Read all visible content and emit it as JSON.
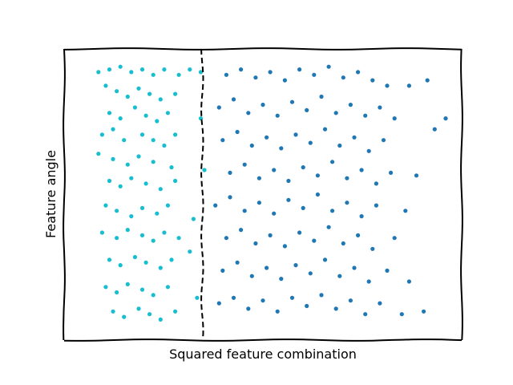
{
  "chart_data": {
    "type": "scatter",
    "xlabel": "Squared feature combination",
    "ylabel": "Feature angle",
    "xlim": [
      0,
      1
    ],
    "ylim": [
      0,
      1
    ],
    "x_ticks_visible": false,
    "y_ticks_visible": false,
    "grid": false,
    "legend": "none",
    "decision_boundary": {
      "style": "dashed",
      "color": "#000000",
      "x": 0.334
    },
    "series": [
      {
        "color": "#17becf",
        "points": [
          [
            0.05,
            0.95
          ],
          [
            0.08,
            0.96
          ],
          [
            0.11,
            0.97
          ],
          [
            0.14,
            0.95
          ],
          [
            0.17,
            0.96
          ],
          [
            0.2,
            0.94
          ],
          [
            0.23,
            0.96
          ],
          [
            0.27,
            0.94
          ],
          [
            0.3,
            0.96
          ],
          [
            0.33,
            0.95
          ],
          [
            0.07,
            0.9
          ],
          [
            0.1,
            0.88
          ],
          [
            0.13,
            0.86
          ],
          [
            0.16,
            0.89
          ],
          [
            0.19,
            0.87
          ],
          [
            0.22,
            0.85
          ],
          [
            0.26,
            0.87
          ],
          [
            0.08,
            0.8
          ],
          [
            0.11,
            0.78
          ],
          [
            0.15,
            0.82
          ],
          [
            0.18,
            0.79
          ],
          [
            0.21,
            0.77
          ],
          [
            0.24,
            0.8
          ],
          [
            0.06,
            0.72
          ],
          [
            0.09,
            0.74
          ],
          [
            0.12,
            0.7
          ],
          [
            0.17,
            0.72
          ],
          [
            0.2,
            0.7
          ],
          [
            0.23,
            0.68
          ],
          [
            0.26,
            0.72
          ],
          [
            0.05,
            0.65
          ],
          [
            0.09,
            0.63
          ],
          [
            0.13,
            0.61
          ],
          [
            0.16,
            0.64
          ],
          [
            0.2,
            0.62
          ],
          [
            0.25,
            0.6
          ],
          [
            0.08,
            0.55
          ],
          [
            0.11,
            0.53
          ],
          [
            0.14,
            0.56
          ],
          [
            0.18,
            0.54
          ],
          [
            0.22,
            0.52
          ],
          [
            0.26,
            0.55
          ],
          [
            0.07,
            0.46
          ],
          [
            0.1,
            0.44
          ],
          [
            0.14,
            0.42
          ],
          [
            0.17,
            0.45
          ],
          [
            0.21,
            0.43
          ],
          [
            0.24,
            0.46
          ],
          [
            0.06,
            0.36
          ],
          [
            0.1,
            0.34
          ],
          [
            0.13,
            0.37
          ],
          [
            0.17,
            0.35
          ],
          [
            0.2,
            0.33
          ],
          [
            0.23,
            0.36
          ],
          [
            0.27,
            0.34
          ],
          [
            0.08,
            0.26
          ],
          [
            0.11,
            0.24
          ],
          [
            0.15,
            0.27
          ],
          [
            0.18,
            0.25
          ],
          [
            0.22,
            0.23
          ],
          [
            0.25,
            0.26
          ],
          [
            0.07,
            0.16
          ],
          [
            0.1,
            0.14
          ],
          [
            0.13,
            0.17
          ],
          [
            0.17,
            0.15
          ],
          [
            0.2,
            0.13
          ],
          [
            0.24,
            0.16
          ],
          [
            0.09,
            0.07
          ],
          [
            0.12,
            0.05
          ],
          [
            0.16,
            0.08
          ],
          [
            0.19,
            0.06
          ],
          [
            0.22,
            0.04
          ],
          [
            0.26,
            0.07
          ],
          [
            0.31,
            0.41
          ],
          [
            0.33,
            0.78
          ],
          [
            0.34,
            0.59
          ],
          [
            0.3,
            0.29
          ],
          [
            0.32,
            0.12
          ]
        ]
      },
      {
        "color": "#1f77b4",
        "points": [
          [
            0.4,
            0.94
          ],
          [
            0.44,
            0.96
          ],
          [
            0.48,
            0.93
          ],
          [
            0.52,
            0.95
          ],
          [
            0.56,
            0.92
          ],
          [
            0.6,
            0.96
          ],
          [
            0.64,
            0.94
          ],
          [
            0.68,
            0.97
          ],
          [
            0.72,
            0.93
          ],
          [
            0.76,
            0.95
          ],
          [
            0.8,
            0.92
          ],
          [
            0.84,
            0.9
          ],
          [
            0.9,
            0.9
          ],
          [
            0.95,
            0.92
          ],
          [
            0.38,
            0.82
          ],
          [
            0.42,
            0.85
          ],
          [
            0.46,
            0.8
          ],
          [
            0.5,
            0.83
          ],
          [
            0.54,
            0.79
          ],
          [
            0.58,
            0.84
          ],
          [
            0.62,
            0.81
          ],
          [
            0.66,
            0.86
          ],
          [
            0.7,
            0.8
          ],
          [
            0.74,
            0.83
          ],
          [
            0.78,
            0.79
          ],
          [
            0.82,
            0.82
          ],
          [
            0.86,
            0.78
          ],
          [
            1.0,
            0.78
          ],
          [
            0.39,
            0.7
          ],
          [
            0.43,
            0.73
          ],
          [
            0.47,
            0.68
          ],
          [
            0.51,
            0.71
          ],
          [
            0.55,
            0.67
          ],
          [
            0.59,
            0.72
          ],
          [
            0.63,
            0.69
          ],
          [
            0.67,
            0.74
          ],
          [
            0.71,
            0.68
          ],
          [
            0.75,
            0.71
          ],
          [
            0.79,
            0.66
          ],
          [
            0.83,
            0.7
          ],
          [
            0.97,
            0.74
          ],
          [
            0.41,
            0.58
          ],
          [
            0.45,
            0.61
          ],
          [
            0.49,
            0.56
          ],
          [
            0.53,
            0.59
          ],
          [
            0.57,
            0.55
          ],
          [
            0.61,
            0.6
          ],
          [
            0.65,
            0.57
          ],
          [
            0.69,
            0.62
          ],
          [
            0.73,
            0.56
          ],
          [
            0.77,
            0.59
          ],
          [
            0.81,
            0.54
          ],
          [
            0.85,
            0.58
          ],
          [
            0.92,
            0.57
          ],
          [
            0.37,
            0.46
          ],
          [
            0.41,
            0.49
          ],
          [
            0.45,
            0.44
          ],
          [
            0.49,
            0.47
          ],
          [
            0.53,
            0.43
          ],
          [
            0.57,
            0.48
          ],
          [
            0.61,
            0.45
          ],
          [
            0.65,
            0.5
          ],
          [
            0.69,
            0.44
          ],
          [
            0.73,
            0.47
          ],
          [
            0.77,
            0.42
          ],
          [
            0.81,
            0.46
          ],
          [
            0.89,
            0.44
          ],
          [
            0.4,
            0.34
          ],
          [
            0.44,
            0.37
          ],
          [
            0.48,
            0.32
          ],
          [
            0.52,
            0.35
          ],
          [
            0.56,
            0.31
          ],
          [
            0.6,
            0.36
          ],
          [
            0.64,
            0.33
          ],
          [
            0.68,
            0.38
          ],
          [
            0.72,
            0.32
          ],
          [
            0.76,
            0.35
          ],
          [
            0.8,
            0.3
          ],
          [
            0.86,
            0.34
          ],
          [
            0.39,
            0.22
          ],
          [
            0.43,
            0.25
          ],
          [
            0.47,
            0.2
          ],
          [
            0.51,
            0.23
          ],
          [
            0.55,
            0.19
          ],
          [
            0.59,
            0.24
          ],
          [
            0.63,
            0.21
          ],
          [
            0.67,
            0.26
          ],
          [
            0.71,
            0.2
          ],
          [
            0.75,
            0.23
          ],
          [
            0.79,
            0.18
          ],
          [
            0.84,
            0.22
          ],
          [
            0.9,
            0.18
          ],
          [
            0.38,
            0.1
          ],
          [
            0.42,
            0.12
          ],
          [
            0.46,
            0.08
          ],
          [
            0.5,
            0.11
          ],
          [
            0.54,
            0.07
          ],
          [
            0.58,
            0.12
          ],
          [
            0.62,
            0.09
          ],
          [
            0.66,
            0.13
          ],
          [
            0.7,
            0.08
          ],
          [
            0.74,
            0.11
          ],
          [
            0.78,
            0.06
          ],
          [
            0.82,
            0.1
          ],
          [
            0.88,
            0.06
          ],
          [
            0.94,
            0.07
          ]
        ]
      }
    ]
  }
}
